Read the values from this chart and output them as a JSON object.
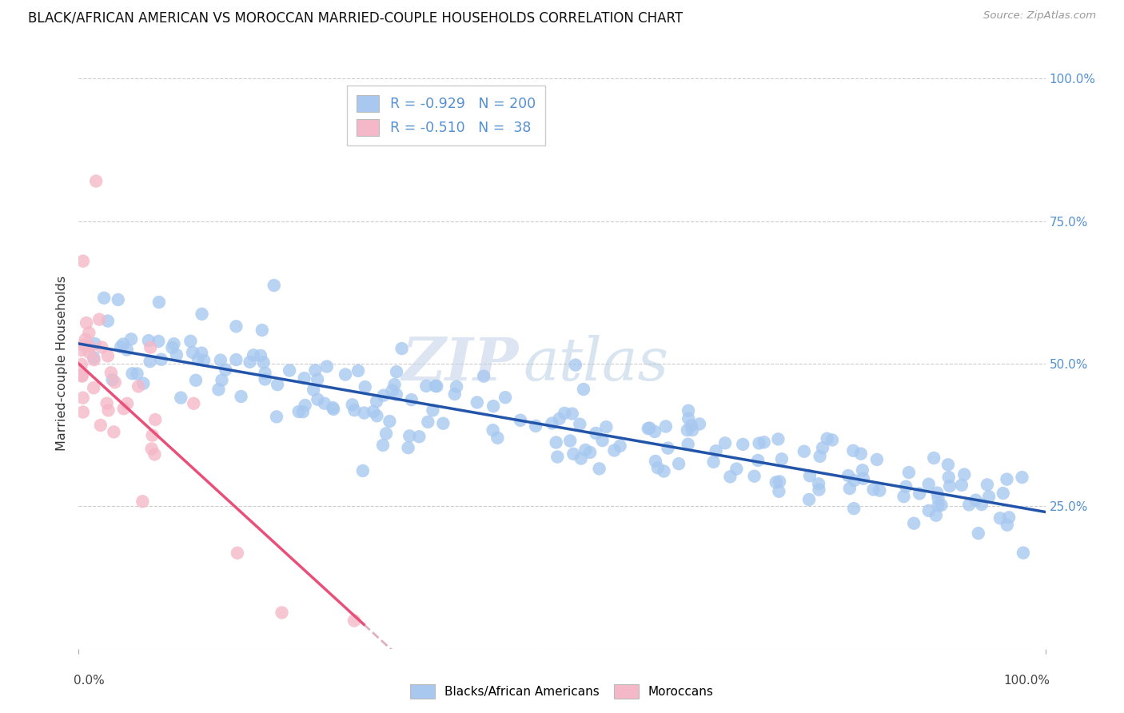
{
  "title": "BLACK/AFRICAN AMERICAN VS MOROCCAN MARRIED-COUPLE HOUSEHOLDS CORRELATION CHART",
  "source": "Source: ZipAtlas.com",
  "ylabel": "Married-couple Households",
  "watermark_zip": "ZIP",
  "watermark_atlas": "atlas",
  "blue_R": -0.929,
  "blue_N": 200,
  "pink_R": -0.51,
  "pink_N": 38,
  "blue_color": "#a8c8f0",
  "blue_line_color": "#2255aa",
  "pink_color": "#f5b8c8",
  "pink_line_color": "#e8507a",
  "pink_line_dashed_color": "#e0b0c0",
  "bg_color": "#ffffff",
  "grid_color": "#cccccc",
  "right_label_color": "#5590d0",
  "title_color": "#111111",
  "legend_box_color": "#ffffff",
  "xlim": [
    0.0,
    1.0
  ],
  "ylim": [
    0.0,
    1.0
  ],
  "yticks": [
    0.0,
    0.25,
    0.5,
    0.75,
    1.0
  ],
  "ytick_labels_right": [
    "",
    "25.0%",
    "50.0%",
    "75.0%",
    "100.0%"
  ],
  "blue_intercept": 0.535,
  "blue_slope": -0.295,
  "blue_noise": 0.042,
  "pink_intercept": 0.5,
  "pink_slope": -1.55,
  "pink_noise": 0.065,
  "seed_blue": 42,
  "seed_pink": 99
}
